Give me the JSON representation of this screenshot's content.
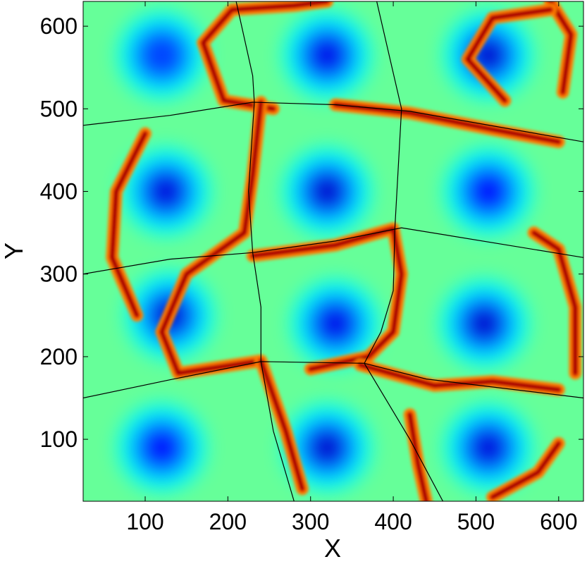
{
  "chart_data": {
    "type": "heatmap",
    "title": "",
    "xlabel": "X",
    "ylabel": "Y",
    "xlim": [
      25,
      630
    ],
    "ylim": [
      25,
      630
    ],
    "x_ticks": [
      100,
      200,
      300,
      400,
      500,
      600
    ],
    "y_ticks": [
      100,
      200,
      300,
      400,
      500,
      600
    ],
    "colormap": "jet",
    "colormap_stops": [
      "#00008f",
      "#0000ff",
      "#00ffff",
      "#ffff00",
      "#ff0000",
      "#800000"
    ],
    "field_description": "3x3 array of counter-rotating vortices joined by thin high-value filaments",
    "vortices": [
      {
        "x": 120,
        "y": 565,
        "min": 0.25
      },
      {
        "x": 320,
        "y": 565,
        "min": 0.15
      },
      {
        "x": 515,
        "y": 565,
        "min": 0.05
      },
      {
        "x": 125,
        "y": 400,
        "min": 0.1
      },
      {
        "x": 320,
        "y": 400,
        "min": 0.05
      },
      {
        "x": 515,
        "y": 400,
        "min": 0.2
      },
      {
        "x": 130,
        "y": 250,
        "min": 0.05
      },
      {
        "x": 330,
        "y": 240,
        "min": 0.15
      },
      {
        "x": 510,
        "y": 240,
        "min": 0.05
      },
      {
        "x": 120,
        "y": 90,
        "min": 0.2
      },
      {
        "x": 320,
        "y": 90,
        "min": 0.05
      },
      {
        "x": 515,
        "y": 90,
        "min": 0.1
      }
    ],
    "filaments": [
      [
        [
          255,
          500
        ],
        [
          195,
          510
        ],
        [
          170,
          580
        ],
        [
          205,
          620
        ],
        [
          280,
          625
        ],
        [
          320,
          630
        ]
      ],
      [
        [
          240,
          508
        ],
        [
          230,
          420
        ],
        [
          220,
          350
        ],
        [
          150,
          300
        ],
        [
          120,
          230
        ],
        [
          140,
          180
        ],
        [
          240,
          195
        ]
      ],
      [
        [
          230,
          322
        ],
        [
          330,
          335
        ],
        [
          400,
          355
        ],
        [
          410,
          300
        ],
        [
          400,
          230
        ],
        [
          370,
          200
        ],
        [
          300,
          185
        ]
      ],
      [
        [
          240,
          195
        ],
        [
          270,
          110
        ],
        [
          290,
          40
        ]
      ],
      [
        [
          330,
          505
        ],
        [
          420,
          495
        ],
        [
          520,
          475
        ],
        [
          600,
          460
        ]
      ],
      [
        [
          360,
          190
        ],
        [
          450,
          165
        ],
        [
          520,
          170
        ],
        [
          600,
          160
        ]
      ],
      [
        [
          620,
          180
        ],
        [
          620,
          260
        ],
        [
          600,
          330
        ],
        [
          570,
          350
        ]
      ],
      [
        [
          605,
          520
        ],
        [
          615,
          590
        ],
        [
          590,
          630
        ]
      ],
      [
        [
          535,
          510
        ],
        [
          490,
          560
        ],
        [
          520,
          610
        ],
        [
          590,
          620
        ]
      ],
      [
        [
          600,
          95
        ],
        [
          575,
          60
        ],
        [
          520,
          30
        ]
      ],
      [
        [
          90,
          250
        ],
        [
          60,
          320
        ],
        [
          65,
          400
        ],
        [
          100,
          470
        ]
      ],
      [
        [
          420,
          130
        ],
        [
          430,
          70
        ],
        [
          440,
          25
        ]
      ]
    ],
    "overlay_lines": [
      [
        [
          25,
          480
        ],
        [
          130,
          492
        ],
        [
          230,
          508
        ],
        [
          330,
          505
        ],
        [
          420,
          497
        ],
        [
          630,
          460
        ]
      ],
      [
        [
          25,
          300
        ],
        [
          130,
          318
        ],
        [
          230,
          326
        ],
        [
          330,
          340
        ],
        [
          410,
          356
        ],
        [
          630,
          320
        ]
      ],
      [
        [
          25,
          150
        ],
        [
          130,
          172
        ],
        [
          240,
          194
        ],
        [
          365,
          192
        ],
        [
          440,
          173
        ],
        [
          630,
          150
        ]
      ],
      [
        [
          210,
          630
        ],
        [
          230,
          540
        ],
        [
          232,
          508
        ],
        [
          225,
          400
        ],
        [
          230,
          326
        ],
        [
          240,
          260
        ],
        [
          240,
          194
        ],
        [
          255,
          110
        ],
        [
          280,
          25
        ]
      ],
      [
        [
          380,
          630
        ],
        [
          410,
          500
        ],
        [
          402,
          356
        ],
        [
          400,
          280
        ],
        [
          385,
          230
        ],
        [
          365,
          192
        ],
        [
          420,
          100
        ],
        [
          460,
          25
        ]
      ]
    ]
  }
}
